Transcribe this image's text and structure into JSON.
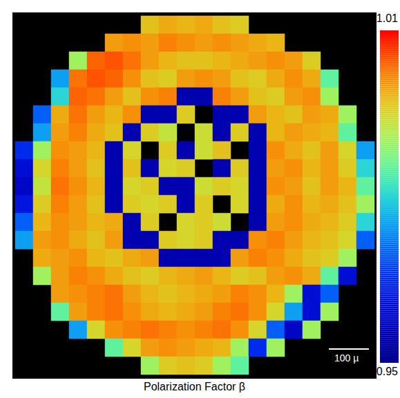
{
  "chart_data": {
    "type": "heatmap",
    "title": "Polarization Factor β",
    "tick_labels": false,
    "annotations": [
      "100 µ"
    ],
    "colorbar": {
      "range": [
        0.95,
        1.01
      ],
      "ticks": [
        0.95,
        1.01
      ]
    },
    "values": [
      [
        null,
        null,
        null,
        null,
        null,
        null,
        null,
        0.997,
        0.999,
        0.998,
        0.999,
        0.997,
        0.996,
        null,
        null,
        null,
        null,
        null,
        null,
        null
      ],
      [
        null,
        null,
        null,
        null,
        null,
        1.0,
        1.001,
        1.0,
        1.002,
        1.001,
        1.0,
        1.001,
        1.0,
        0.999,
        0.998,
        null,
        null,
        null,
        null,
        null
      ],
      [
        null,
        null,
        null,
        0.99,
        1.004,
        1.005,
        1.003,
        1.0,
        0.998,
        0.997,
        0.997,
        0.998,
        0.999,
        1.0,
        1.001,
        1.0,
        0.996,
        null,
        null,
        null
      ],
      [
        null,
        null,
        0.975,
        1.003,
        1.005,
        1.004,
        1.001,
        0.997,
        0.996,
        1.0,
        1.001,
        1.0,
        0.997,
        0.996,
        0.999,
        1.001,
        0.999,
        0.985,
        null,
        null
      ],
      [
        null,
        null,
        0.98,
        1.004,
        1.003,
        1.0,
        0.997,
        1.001,
        1.002,
        0.955,
        0.955,
        1.002,
        1.0,
        0.997,
        0.996,
        1.0,
        1.001,
        0.99,
        null,
        null
      ],
      [
        null,
        0.97,
        0.999,
        1.003,
        1.0,
        0.998,
        1.001,
        0.955,
        0.955,
        0.996,
        null,
        0.955,
        0.955,
        1.0,
        0.998,
        0.997,
        1.0,
        0.999,
        0.99,
        null
      ],
      [
        null,
        0.975,
        1.0,
        1.002,
        0.999,
        0.997,
        0.955,
        0.996,
        0.993,
        null,
        0.994,
        0.955,
        0.996,
        0.955,
        0.998,
        1.0,
        0.999,
        0.998,
        0.985,
        null
      ],
      [
        0.965,
        0.99,
        1.001,
        1.0,
        0.998,
        0.955,
        0.995,
        null,
        0.996,
        0.955,
        0.994,
        0.997,
        null,
        0.955,
        1.001,
        0.999,
        0.997,
        1.0,
        0.995,
        0.975
      ],
      [
        0.96,
        0.995,
        1.002,
        1.0,
        0.997,
        0.955,
        0.997,
        0.955,
        0.995,
        0.996,
        null,
        0.955,
        0.996,
        0.955,
        1.0,
        1.001,
        0.998,
        1.0,
        0.996,
        0.98
      ],
      [
        0.958,
        0.993,
        1.003,
        1.001,
        0.998,
        0.955,
        0.995,
        0.996,
        0.955,
        0.955,
        0.994,
        0.996,
        0.995,
        0.955,
        1.001,
        1.0,
        0.997,
        1.0,
        0.998,
        0.985
      ],
      [
        0.962,
        0.996,
        1.002,
        1.0,
        0.997,
        0.955,
        0.996,
        0.995,
        0.996,
        0.955,
        0.996,
        null,
        0.995,
        0.955,
        0.999,
        1.001,
        0.998,
        0.999,
        0.997,
        0.99
      ],
      [
        0.97,
        0.998,
        1.001,
        1.0,
        0.998,
        0.999,
        0.955,
        0.996,
        null,
        0.995,
        0.996,
        0.994,
        null,
        0.955,
        1.0,
        1.001,
        0.999,
        0.998,
        0.996,
        0.98
      ],
      [
        0.975,
        1.0,
        1.001,
        0.999,
        0.997,
        1.0,
        0.955,
        0.955,
        0.996,
        0.995,
        0.996,
        0.955,
        0.955,
        1.001,
        1.002,
        1.0,
        0.998,
        0.997,
        0.995,
        0.97
      ],
      [
        null,
        0.999,
        1.0,
        1.001,
        0.998,
        0.997,
        0.999,
        1.0,
        0.955,
        0.955,
        0.955,
        0.955,
        1.0,
        1.002,
        1.001,
        0.999,
        0.997,
        0.996,
        0.99,
        null
      ],
      [
        null,
        0.99,
        1.0,
        1.002,
        1.001,
        0.999,
        0.997,
        0.996,
        0.998,
        0.999,
        1.0,
        0.998,
        0.996,
        0.997,
        1.0,
        1.001,
        0.999,
        0.985,
        0.96,
        null
      ],
      [
        null,
        null,
        1.0,
        1.001,
        1.002,
        1.003,
        1.0,
        0.998,
        0.997,
        0.998,
        0.999,
        1.0,
        1.002,
        1.001,
        0.998,
        0.99,
        0.96,
        0.97,
        null,
        null
      ],
      [
        null,
        null,
        0.985,
        1.0,
        1.002,
        1.003,
        1.001,
        0.999,
        0.998,
        0.999,
        1.0,
        1.002,
        1.003,
        1.001,
        0.995,
        0.975,
        0.96,
        0.99,
        null,
        null
      ],
      [
        null,
        null,
        null,
        0.975,
        0.995,
        1.001,
        1.002,
        1.003,
        1.002,
        1.001,
        1.002,
        1.003,
        1.001,
        0.995,
        0.97,
        0.958,
        0.99,
        null,
        null,
        null
      ],
      [
        null,
        null,
        null,
        null,
        null,
        0.985,
        0.995,
        1.0,
        1.001,
        1.0,
        0.999,
        0.998,
        0.99,
        0.965,
        0.99,
        null,
        null,
        null,
        null,
        null
      ],
      [
        null,
        null,
        null,
        null,
        null,
        null,
        null,
        0.99,
        0.996,
        0.997,
        0.996,
        0.99,
        0.985,
        null,
        null,
        null,
        null,
        null,
        null,
        null
      ]
    ]
  }
}
